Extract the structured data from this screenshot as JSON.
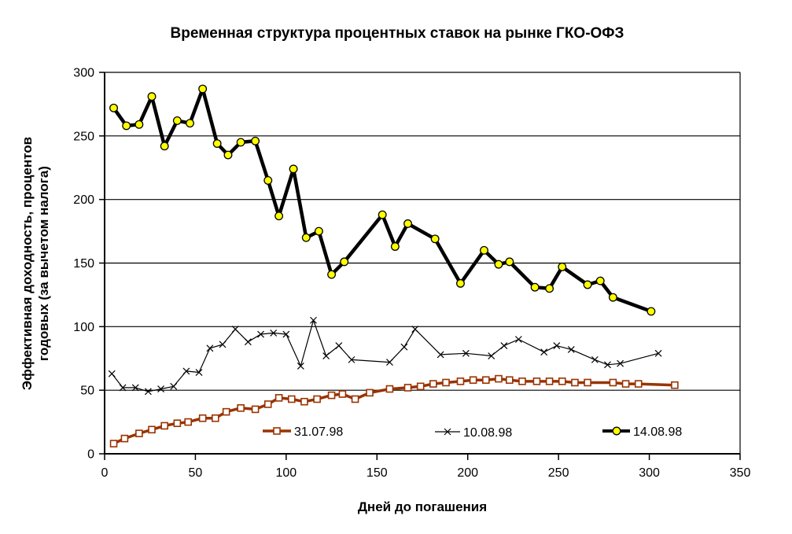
{
  "chart_data": {
    "type": "line",
    "title": "Временная структура процентных ставок на рынке ГКО-ОФЗ",
    "xlabel": "Дней до погашения",
    "ylabel_line1": "Эффективная доходность, процентов",
    "ylabel_line2": "годовых (за вычетом налога)",
    "xlim": [
      0,
      350
    ],
    "ylim": [
      0,
      300
    ],
    "x_ticks": [
      0,
      50,
      100,
      150,
      200,
      250,
      300,
      350
    ],
    "y_ticks": [
      0,
      50,
      100,
      150,
      200,
      250,
      300
    ],
    "grid": "horizontal",
    "legend_position": "inside-bottom",
    "background_color": "#ffffff",
    "series": [
      {
        "name": "31.07.98",
        "color": "#993300",
        "marker": "square-open",
        "line_width": 3.5,
        "x": [
          5,
          11,
          19,
          26,
          33,
          40,
          46,
          54,
          61,
          67,
          75,
          83,
          90,
          96,
          103,
          110,
          117,
          125,
          131,
          138,
          146,
          157,
          167,
          174,
          181,
          188,
          196,
          203,
          210,
          217,
          223,
          230,
          238,
          245,
          252,
          259,
          266,
          280,
          287,
          294,
          314
        ],
        "y": [
          8,
          12,
          16,
          19,
          22,
          24,
          25,
          28,
          28,
          33,
          36,
          35,
          39,
          44,
          43,
          41,
          43,
          46,
          47,
          43,
          48,
          51,
          52,
          53,
          55,
          56,
          57,
          58,
          58,
          59,
          58,
          57,
          57,
          57,
          57,
          56,
          56,
          56,
          55,
          55,
          54
        ]
      },
      {
        "name": "10.08.98",
        "color": "#000000",
        "marker": "x",
        "line_width": 1.2,
        "x": [
          4,
          10,
          17,
          24,
          31,
          38,
          45,
          52,
          58,
          65,
          72,
          79,
          86,
          93,
          100,
          108,
          115,
          122,
          129,
          136,
          157,
          165,
          171,
          185,
          199,
          213,
          220,
          228,
          242,
          249,
          257,
          270,
          277,
          284,
          305
        ],
        "y": [
          63,
          52,
          52,
          49,
          51,
          53,
          65,
          64,
          83,
          86,
          98,
          88,
          94,
          95,
          94,
          69,
          105,
          77,
          85,
          74,
          72,
          84,
          98,
          78,
          79,
          77,
          85,
          90,
          80,
          85,
          82,
          74,
          70,
          71,
          79
        ]
      },
      {
        "name": "14.08.98",
        "color": "#000000",
        "marker": "circle-yellow",
        "marker_fill": "#FFFF00",
        "line_width": 4.5,
        "x": [
          5,
          12,
          19,
          26,
          33,
          40,
          47,
          54,
          62,
          68,
          75,
          83,
          90,
          96,
          104,
          111,
          118,
          125,
          132,
          153,
          160,
          167,
          182,
          196,
          209,
          217,
          223,
          237,
          245,
          252,
          266,
          273,
          280,
          301
        ],
        "y": [
          272,
          258,
          259,
          281,
          242,
          262,
          260,
          287,
          244,
          235,
          245,
          246,
          215,
          187,
          224,
          170,
          175,
          141,
          151,
          188,
          163,
          181,
          169,
          134,
          160,
          149,
          151,
          131,
          130,
          147,
          133,
          136,
          123,
          112
        ]
      }
    ]
  }
}
